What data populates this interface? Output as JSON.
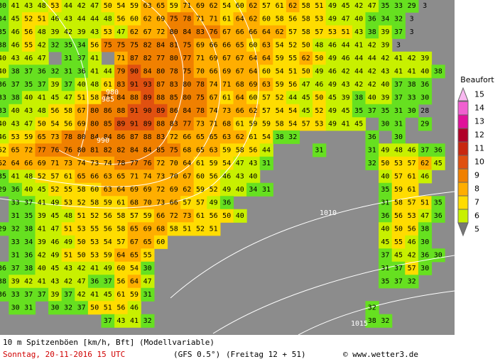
{
  "grid": {
    "rows": [
      [
        30,
        41,
        43,
        48,
        53,
        44,
        42,
        47,
        50,
        54,
        59,
        63,
        65,
        59,
        71,
        69,
        62,
        54,
        60,
        62,
        57,
        61,
        62,
        58,
        51,
        49,
        45,
        42,
        47,
        35,
        33,
        29,
        3
      ],
      [
        34,
        45,
        52,
        51,
        46,
        43,
        44,
        44,
        48,
        56,
        60,
        62,
        69,
        75,
        78,
        71,
        71,
        61,
        64,
        62,
        60,
        58,
        56,
        58,
        53,
        49,
        47,
        40,
        36,
        34,
        32,
        3
      ],
      [
        35,
        46,
        56,
        48,
        39,
        42,
        39,
        43,
        53,
        47,
        62,
        67,
        72,
        80,
        84,
        83,
        76,
        67,
        66,
        66,
        64,
        62,
        57,
        58,
        57,
        53,
        51,
        43,
        38,
        39,
        37,
        3
      ],
      [
        38,
        46,
        55,
        42,
        32,
        35,
        34,
        56,
        75,
        75,
        75,
        82,
        84,
        81,
        75,
        69,
        66,
        66,
        65,
        60,
        63,
        54,
        52,
        50,
        48,
        46,
        44,
        41,
        42,
        39,
        3
      ],
      [
        40,
        43,
        46,
        47,
        null,
        31,
        37,
        41,
        null,
        71,
        87,
        82,
        77,
        80,
        77,
        71,
        69,
        67,
        67,
        64,
        64,
        59,
        55,
        62,
        50,
        49,
        46,
        44,
        44,
        42,
        41,
        42,
        39
      ],
      [
        40,
        38,
        37,
        36,
        32,
        31,
        36,
        41,
        44,
        79,
        90,
        84,
        80,
        78,
        75,
        70,
        66,
        69,
        67,
        64,
        60,
        54,
        51,
        50,
        49,
        46,
        42,
        44,
        42,
        43,
        41,
        41,
        40,
        38
      ],
      [
        36,
        37,
        35,
        37,
        39,
        37,
        40,
        48,
        61,
        83,
        91,
        93,
        87,
        83,
        80,
        78,
        74,
        71,
        68,
        69,
        63,
        59,
        56,
        47,
        46,
        49,
        43,
        42,
        42,
        40,
        37,
        38,
        36
      ],
      [
        33,
        38,
        40,
        41,
        45,
        47,
        51,
        58,
        75,
        84,
        88,
        89,
        88,
        85,
        80,
        75,
        67,
        61,
        64,
        60,
        57,
        52,
        44,
        45,
        50,
        45,
        39,
        38,
        40,
        39,
        37,
        33,
        30
      ],
      [
        33,
        40,
        43,
        48,
        56,
        58,
        67,
        80,
        86,
        88,
        91,
        90,
        89,
        86,
        84,
        78,
        74,
        73,
        66,
        62,
        57,
        54,
        54,
        45,
        52,
        49,
        45,
        35,
        37,
        35,
        31,
        30,
        28
      ],
      [
        40,
        43,
        47,
        50,
        54,
        56,
        69,
        80,
        85,
        89,
        91,
        89,
        88,
        83,
        77,
        73,
        71,
        68,
        61,
        59,
        59,
        58,
        54,
        57,
        53,
        49,
        41,
        45,
        null,
        30,
        31,
        null,
        29
      ],
      [
        46,
        53,
        59,
        65,
        73,
        78,
        80,
        84,
        84,
        86,
        87,
        88,
        83,
        72,
        66,
        65,
        65,
        63,
        62,
        61,
        54,
        38,
        32,
        null,
        null,
        null,
        null,
        null,
        36,
        null,
        30
      ],
      [
        52,
        65,
        72,
        77,
        76,
        76,
        80,
        81,
        82,
        82,
        84,
        84,
        85,
        75,
        68,
        65,
        63,
        59,
        58,
        56,
        44,
        null,
        null,
        null,
        31,
        null,
        null,
        null,
        31,
        49,
        48,
        46,
        37,
        36
      ],
      [
        62,
        64,
        66,
        69,
        71,
        73,
        74,
        73,
        74,
        78,
        77,
        76,
        72,
        70,
        64,
        61,
        59,
        54,
        47,
        43,
        31,
        null,
        null,
        null,
        null,
        null,
        null,
        null,
        32,
        50,
        53,
        57,
        62,
        45
      ],
      [
        35,
        41,
        48,
        52,
        57,
        61,
        65,
        66,
        63,
        65,
        71,
        74,
        73,
        70,
        67,
        60,
        56,
        46,
        43,
        40,
        null,
        null,
        null,
        null,
        null,
        null,
        null,
        null,
        null,
        40,
        57,
        61,
        46
      ],
      [
        29,
        36,
        40,
        45,
        52,
        55,
        58,
        60,
        63,
        64,
        69,
        69,
        72,
        69,
        62,
        59,
        52,
        49,
        40,
        34,
        31,
        null,
        null,
        null,
        null,
        null,
        null,
        null,
        null,
        35,
        59,
        61
      ],
      [
        null,
        33,
        37,
        41,
        49,
        53,
        52,
        58,
        59,
        61,
        68,
        70,
        73,
        66,
        57,
        57,
        49,
        36,
        null,
        null,
        null,
        null,
        null,
        null,
        null,
        null,
        null,
        null,
        null,
        31,
        58,
        57,
        51,
        35
      ],
      [
        null,
        31,
        35,
        39,
        45,
        48,
        51,
        52,
        56,
        58,
        57,
        59,
        66,
        72,
        73,
        61,
        56,
        50,
        40,
        null,
        null,
        null,
        null,
        null,
        null,
        null,
        null,
        null,
        null,
        36,
        56,
        53,
        47,
        36
      ],
      [
        29,
        32,
        38,
        41,
        47,
        51,
        53,
        55,
        56,
        58,
        65,
        69,
        68,
        58,
        51,
        52,
        51,
        null,
        null,
        null,
        null,
        null,
        null,
        null,
        null,
        null,
        null,
        null,
        null,
        40,
        50,
        56,
        38
      ],
      [
        null,
        33,
        34,
        39,
        46,
        49,
        50,
        53,
        54,
        57,
        67,
        65,
        60,
        null,
        null,
        null,
        null,
        null,
        null,
        null,
        null,
        null,
        null,
        null,
        null,
        null,
        null,
        null,
        null,
        45,
        55,
        46,
        30
      ],
      [
        null,
        31,
        36,
        42,
        49,
        51,
        50,
        53,
        59,
        64,
        65,
        55,
        null,
        null,
        null,
        null,
        null,
        null,
        null,
        null,
        null,
        null,
        null,
        null,
        null,
        null,
        null,
        null,
        null,
        37,
        45,
        42,
        36,
        30
      ],
      [
        36,
        37,
        38,
        40,
        45,
        43,
        42,
        41,
        49,
        60,
        54,
        30,
        null,
        null,
        null,
        null,
        null,
        null,
        null,
        null,
        null,
        null,
        null,
        null,
        null,
        null,
        null,
        null,
        null,
        31,
        37,
        57,
        30
      ],
      [
        38,
        39,
        42,
        41,
        43,
        42,
        47,
        36,
        37,
        56,
        64,
        47,
        null,
        null,
        null,
        null,
        null,
        null,
        null,
        null,
        null,
        null,
        null,
        null,
        null,
        null,
        null,
        null,
        null,
        35,
        37,
        32
      ],
      [
        36,
        33,
        37,
        37,
        39,
        37,
        42,
        41,
        45,
        61,
        59,
        31
      ],
      [
        null,
        30,
        31,
        null,
        30,
        32,
        37,
        50,
        51,
        56,
        46,
        null,
        null,
        null,
        null,
        null,
        null,
        null,
        null,
        null,
        null,
        null,
        null,
        null,
        null,
        null,
        null,
        null,
        32
      ],
      [
        null,
        null,
        null,
        null,
        null,
        null,
        null,
        null,
        37,
        43,
        41,
        32,
        null,
        null,
        null,
        null,
        null,
        null,
        null,
        null,
        null,
        null,
        null,
        null,
        null,
        null,
        null,
        null,
        38,
        32
      ]
    ]
  },
  "pressure_labels": [
    "980",
    "985",
    "990",
    "1010",
    "1015"
  ],
  "legend": {
    "title": "Beaufort",
    "levels": [
      {
        "label": "15",
        "color": "#f8b8f0"
      },
      {
        "label": "14",
        "color": "#f060d0"
      },
      {
        "label": "13",
        "color": "#e0109a"
      },
      {
        "label": "12",
        "color": "#b00028"
      },
      {
        "label": "11",
        "color": "#c82810"
      },
      {
        "label": "10",
        "color": "#e05010"
      },
      {
        "label": "9",
        "color": "#f08000"
      },
      {
        "label": "8",
        "color": "#ffae00"
      },
      {
        "label": "7",
        "color": "#ffdc00"
      },
      {
        "label": "6",
        "color": "#c8f000"
      },
      {
        "label": "5",
        "color": "#66e020"
      }
    ]
  },
  "footer": {
    "variable": "10 m Spitzenböen [km/h, Bft] (Modellvariable)",
    "date": "Sonntag, 20-11-2016  15 UTC",
    "model": "(GFS 0.5°)",
    "run": "(Freitag 12 + 51)",
    "source": "© www.wetter3.de"
  }
}
